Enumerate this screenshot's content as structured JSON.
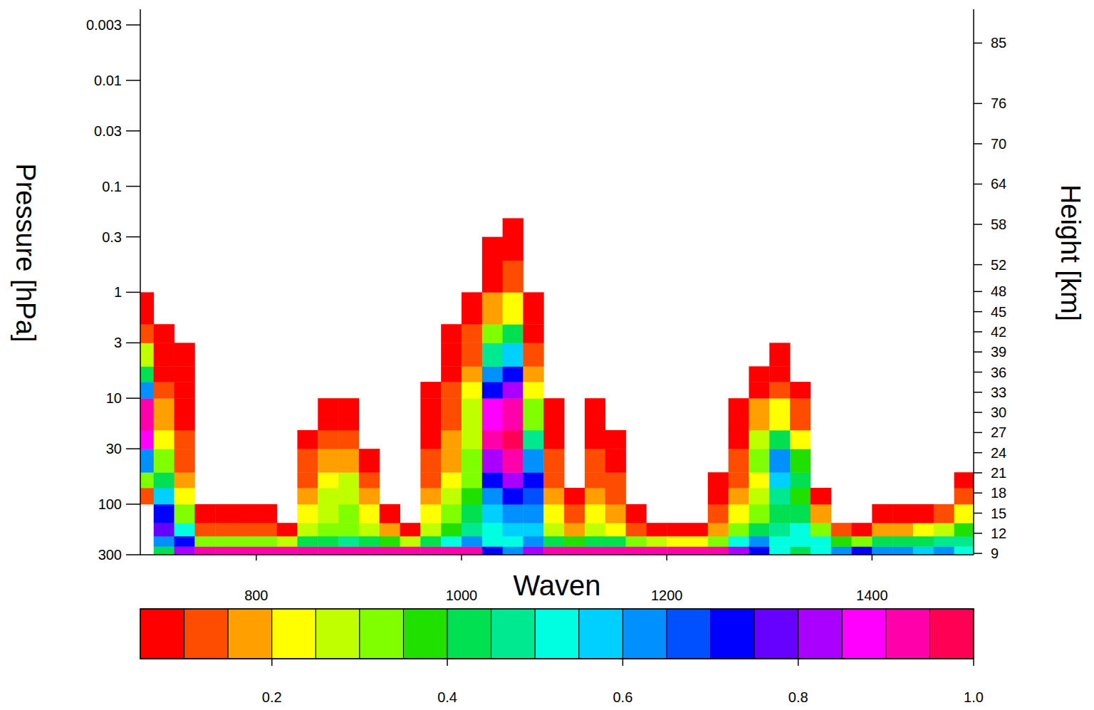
{
  "chart_data": {
    "type": "heatmap",
    "x_label": "Waven",
    "y_label": "Pressure [hPa]",
    "y2_label": "Height [km]",
    "log": "y",
    "xlim": [
      687,
      1499
    ],
    "xticks": [
      800,
      1000,
      1200,
      1400
    ],
    "ylim": [
      300,
      0.003
    ],
    "yticks": [
      0.003,
      0.01,
      0.03,
      0.1,
      0.3,
      1,
      3,
      10,
      30,
      100,
      300
    ],
    "y2lim": [
      8.8,
      87.7
    ],
    "y2ticks": [
      9,
      12,
      15,
      18,
      21,
      24,
      27,
      30,
      33,
      36,
      39,
      42,
      45,
      48,
      52,
      58,
      64,
      70,
      76,
      85
    ],
    "x_edges": [
      680,
      700,
      720,
      740,
      760,
      780,
      800,
      820,
      840,
      860,
      880,
      900,
      920,
      940,
      960,
      980,
      1000,
      1020,
      1040,
      1060,
      1080,
      1100,
      1120,
      1140,
      1160,
      1180,
      1200,
      1220,
      1240,
      1260,
      1280,
      1300,
      1320,
      1340,
      1360,
      1380,
      1400,
      1420,
      1440,
      1460,
      1480,
      1500
    ],
    "y_edges": [
      300,
      250,
      200,
      150,
      100,
      70,
      50,
      30,
      20,
      10,
      7,
      5,
      3,
      2,
      1,
      0.5,
      0.3,
      0.2,
      0.1
    ],
    "cells": [
      [
        null,
        null,
        null,
        null,
        0.1,
        0.3,
        0.6,
        0.85,
        0.9,
        0.6,
        0.4,
        0.25,
        0.12,
        0.07,
        null,
        null,
        null,
        null
      ],
      [
        0.4,
        0.6,
        0.75,
        0.7,
        0.55,
        0.4,
        0.3,
        0.2,
        0.15,
        0.1,
        0.08,
        0.06,
        0.05,
        null,
        null,
        null,
        null,
        null
      ],
      [
        0.8,
        0.7,
        0.5,
        0.3,
        0.2,
        0.15,
        0.12,
        0.1,
        0.08,
        0.07,
        0.06,
        0.05,
        null,
        null,
        null,
        null,
        null,
        null
      ],
      [
        0.9,
        0.3,
        0.1,
        0.06,
        null,
        null,
        null,
        null,
        null,
        null,
        null,
        null,
        null,
        null,
        null,
        null,
        null,
        null
      ],
      [
        0.9,
        0.3,
        0.12,
        0.06,
        null,
        null,
        null,
        null,
        null,
        null,
        null,
        null,
        null,
        null,
        null,
        null,
        null,
        null
      ],
      [
        0.9,
        0.3,
        0.1,
        0.06,
        null,
        null,
        null,
        null,
        null,
        null,
        null,
        null,
        null,
        null,
        null,
        null,
        null,
        null
      ],
      [
        0.9,
        0.3,
        0.1,
        0.06,
        null,
        null,
        null,
        null,
        null,
        null,
        null,
        null,
        null,
        null,
        null,
        null,
        null,
        null
      ],
      [
        0.9,
        0.25,
        0.08,
        null,
        null,
        null,
        null,
        null,
        null,
        null,
        null,
        null,
        null,
        null,
        null,
        null,
        null,
        null
      ],
      [
        0.9,
        0.4,
        0.25,
        0.2,
        0.15,
        0.12,
        0.1,
        0.07,
        null,
        null,
        null,
        null,
        null,
        null,
        null,
        null,
        null,
        null
      ],
      [
        0.9,
        0.4,
        0.3,
        0.28,
        0.25,
        0.2,
        0.15,
        0.1,
        0.06,
        null,
        null,
        null,
        null,
        null,
        null,
        null,
        null,
        null
      ],
      [
        0.9,
        0.45,
        0.3,
        0.3,
        0.28,
        0.25,
        0.18,
        0.12,
        0.07,
        null,
        null,
        null,
        null,
        null,
        null,
        null,
        null,
        null
      ],
      [
        0.9,
        0.4,
        0.25,
        0.2,
        0.15,
        0.1,
        0.07,
        null,
        null,
        null,
        null,
        null,
        null,
        null,
        null,
        null,
        null,
        null
      ],
      [
        0.9,
        0.35,
        0.15,
        0.08,
        null,
        null,
        null,
        null,
        null,
        null,
        null,
        null,
        null,
        null,
        null,
        null,
        null,
        null
      ],
      [
        0.9,
        0.25,
        0.08,
        null,
        null,
        null,
        null,
        null,
        null,
        null,
        null,
        null,
        null,
        null,
        null,
        null,
        null,
        null
      ],
      [
        0.9,
        0.4,
        0.25,
        0.2,
        0.15,
        0.12,
        0.1,
        0.08,
        0.07,
        0.06,
        null,
        null,
        null,
        null,
        null,
        null,
        null,
        null
      ],
      [
        0.9,
        0.5,
        0.35,
        0.3,
        0.25,
        0.2,
        0.18,
        0.15,
        0.12,
        0.1,
        0.08,
        0.07,
        0.06,
        null,
        null,
        null,
        null,
        null
      ],
      [
        0.9,
        0.6,
        0.45,
        0.4,
        0.35,
        0.33,
        0.3,
        0.28,
        0.25,
        0.2,
        0.15,
        0.12,
        0.1,
        0.07,
        null,
        null,
        null,
        null
      ],
      [
        0.7,
        0.5,
        0.5,
        0.55,
        0.6,
        0.7,
        0.8,
        0.9,
        0.85,
        0.7,
        0.6,
        0.45,
        0.3,
        0.15,
        0.08,
        0.06,
        null,
        null
      ],
      [
        0.6,
        0.5,
        0.55,
        0.6,
        0.7,
        0.8,
        0.9,
        0.95,
        0.9,
        0.8,
        0.7,
        0.55,
        0.4,
        0.2,
        0.1,
        0.07,
        0.05,
        null
      ],
      [
        0.8,
        0.6,
        0.55,
        0.6,
        0.65,
        0.7,
        0.6,
        0.45,
        0.3,
        0.2,
        0.15,
        0.1,
        0.07,
        0.05,
        null,
        null,
        null,
        null
      ],
      [
        0.9,
        0.4,
        0.25,
        0.2,
        0.15,
        0.12,
        0.1,
        0.07,
        0.06,
        null,
        null,
        null,
        null,
        null,
        null,
        null,
        null,
        null
      ],
      [
        0.9,
        0.35,
        0.15,
        0.1,
        0.06,
        null,
        null,
        null,
        null,
        null,
        null,
        null,
        null,
        null,
        null,
        null,
        null,
        null
      ],
      [
        0.9,
        0.4,
        0.25,
        0.2,
        0.15,
        0.12,
        0.1,
        0.08,
        0.06,
        null,
        null,
        null,
        null,
        null,
        null,
        null,
        null,
        null
      ],
      [
        0.9,
        0.4,
        0.2,
        0.15,
        0.12,
        0.1,
        0.08,
        0.06,
        null,
        null,
        null,
        null,
        null,
        null,
        null,
        null,
        null,
        null
      ],
      [
        0.9,
        0.3,
        0.1,
        0.06,
        null,
        null,
        null,
        null,
        null,
        null,
        null,
        null,
        null,
        null,
        null,
        null,
        null,
        null
      ],
      [
        0.9,
        0.25,
        0.08,
        null,
        null,
        null,
        null,
        null,
        null,
        null,
        null,
        null,
        null,
        null,
        null,
        null,
        null,
        null
      ],
      [
        0.9,
        0.2,
        0.06,
        null,
        null,
        null,
        null,
        null,
        null,
        null,
        null,
        null,
        null,
        null,
        null,
        null,
        null,
        null
      ],
      [
        0.9,
        0.2,
        0.07,
        null,
        null,
        null,
        null,
        null,
        null,
        null,
        null,
        null,
        null,
        null,
        null,
        null,
        null,
        null
      ],
      [
        0.9,
        0.3,
        0.15,
        0.1,
        0.08,
        0.06,
        null,
        null,
        null,
        null,
        null,
        null,
        null,
        null,
        null,
        null,
        null,
        null
      ],
      [
        0.8,
        0.5,
        0.3,
        0.2,
        0.15,
        0.12,
        0.1,
        0.08,
        0.06,
        null,
        null,
        null,
        null,
        null,
        null,
        null,
        null,
        null
      ],
      [
        0.7,
        0.6,
        0.4,
        0.3,
        0.25,
        0.2,
        0.3,
        0.25,
        0.15,
        0.08,
        0.06,
        null,
        null,
        null,
        null,
        null,
        null,
        null
      ],
      [
        0.5,
        0.5,
        0.45,
        0.4,
        0.45,
        0.55,
        0.6,
        0.4,
        0.2,
        0.1,
        0.07,
        0.05,
        null,
        null,
        null,
        null,
        null,
        null
      ],
      [
        0.4,
        0.5,
        0.5,
        0.4,
        0.35,
        0.4,
        0.35,
        0.2,
        0.1,
        0.06,
        null,
        null,
        null,
        null,
        null,
        null,
        null,
        null
      ],
      [
        0.5,
        0.5,
        0.3,
        0.15,
        0.08,
        null,
        null,
        null,
        null,
        null,
        null,
        null,
        null,
        null,
        null,
        null,
        null,
        null
      ],
      [
        0.6,
        0.35,
        0.1,
        null,
        null,
        null,
        null,
        null,
        null,
        null,
        null,
        null,
        null,
        null,
        null,
        null,
        null,
        null
      ],
      [
        0.7,
        0.3,
        0.08,
        null,
        null,
        null,
        null,
        null,
        null,
        null,
        null,
        null,
        null,
        null,
        null,
        null,
        null,
        null
      ],
      [
        0.6,
        0.4,
        0.15,
        0.06,
        null,
        null,
        null,
        null,
        null,
        null,
        null,
        null,
        null,
        null,
        null,
        null,
        null,
        null
      ],
      [
        0.6,
        0.4,
        0.15,
        0.06,
        null,
        null,
        null,
        null,
        null,
        null,
        null,
        null,
        null,
        null,
        null,
        null,
        null,
        null
      ],
      [
        0.55,
        0.4,
        0.2,
        0.08,
        null,
        null,
        null,
        null,
        null,
        null,
        null,
        null,
        null,
        null,
        null,
        null,
        null,
        null
      ],
      [
        0.6,
        0.45,
        0.25,
        0.1,
        null,
        null,
        null,
        null,
        null,
        null,
        null,
        null,
        null,
        null,
        null,
        null,
        null,
        null
      ],
      [
        0.5,
        0.45,
        0.35,
        0.2,
        0.1,
        0.06,
        null,
        null,
        null,
        null,
        null,
        null,
        null,
        null,
        null,
        null,
        null,
        null
      ]
    ],
    "colorbar": {
      "range": [
        0.05,
        1.0
      ],
      "ticks": [
        0.2,
        0.4,
        0.6,
        0.8,
        {
          "value": 1.0,
          "label": "1.0"
        }
      ],
      "colors": [
        "#ff0000",
        "#ff4d00",
        "#ffa000",
        "#ffff00",
        "#bfff00",
        "#80ff00",
        "#20e000",
        "#00e050",
        "#00e890",
        "#00ffe0",
        "#00d0ff",
        "#0090ff",
        "#0050ff",
        "#0000ff",
        "#6600ff",
        "#aa00ff",
        "#ff00ff",
        "#ff00aa",
        "#ff0055"
      ]
    }
  }
}
